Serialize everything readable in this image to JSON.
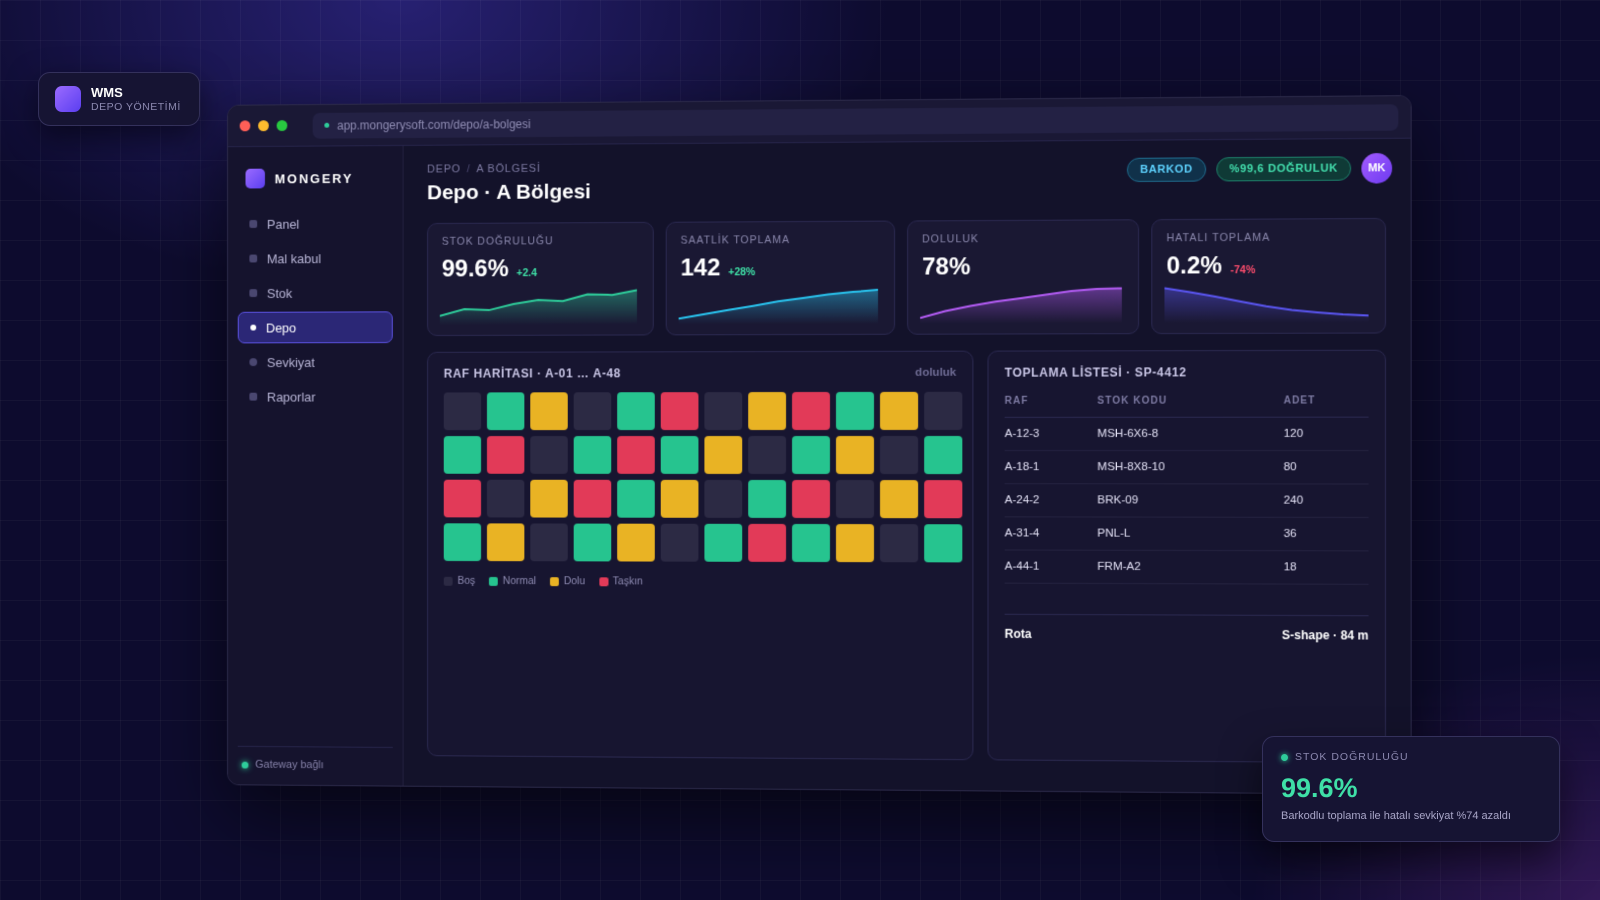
{
  "chip": {
    "title": "WMS",
    "subtitle": "DEPO YÖNETİMİ"
  },
  "browser": {
    "url": "app.mongerysoft.com/depo/a-bolgesi"
  },
  "sidebar": {
    "brand": "MONGERY",
    "items": [
      {
        "label": "Panel"
      },
      {
        "label": "Mal kabul"
      },
      {
        "label": "Stok"
      },
      {
        "label": "Depo",
        "active": true
      },
      {
        "label": "Sevkiyat"
      },
      {
        "label": "Raporlar"
      }
    ],
    "footer": "Gateway bağlı"
  },
  "header": {
    "breadcrumb": [
      "DEPO",
      "A BÖLGESİ"
    ],
    "title": "Depo · A Bölgesi",
    "badge_barkod": "BARKOD",
    "badge_accuracy": "%99,6 DOĞRULUK",
    "avatar": "MK"
  },
  "kpis": [
    {
      "label": "STOK DOĞRULUĞU",
      "value": "99.6%",
      "delta": "+2.4",
      "delta_color": "#3fe0a7",
      "line_color": "#2ecc9a",
      "trend": [
        0.15,
        0.35,
        0.32,
        0.5,
        0.62,
        0.58,
        0.78,
        0.76,
        0.9
      ]
    },
    {
      "label": "SAATLİK TOPLAMA",
      "value": "142",
      "delta": "+28%",
      "delta_color": "#3fe0a7",
      "line_color": "#29c4ef",
      "trend": [
        0.05,
        0.18,
        0.3,
        0.42,
        0.55,
        0.65,
        0.75,
        0.82,
        0.88
      ]
    },
    {
      "label": "DOLULUK",
      "value": "78%",
      "delta": "",
      "delta_color": "#3fe0a7",
      "line_color": "#b45cf5",
      "trend": [
        0.05,
        0.25,
        0.4,
        0.52,
        0.62,
        0.72,
        0.82,
        0.88,
        0.9
      ]
    },
    {
      "label": "HATALI TOPLAMA",
      "value": "0.2%",
      "delta": "-74%",
      "delta_color": "#ff4d6d",
      "line_color": "#5a55f0",
      "trend": [
        0.9,
        0.78,
        0.65,
        0.5,
        0.36,
        0.25,
        0.18,
        0.12,
        0.08
      ]
    }
  ],
  "rack_map": {
    "title": "RAF HARİTASI · A-01 … A-48",
    "aside": "doluluk",
    "status_colors": {
      "bos": "#2c2a44",
      "normal": "#26c48f",
      "dolu": "#e9b324",
      "taskin": "#e23a58"
    },
    "rows": [
      [
        "bos",
        "normal",
        "dolu",
        "bos",
        "normal",
        "taskin",
        "bos",
        "dolu",
        "taskin",
        "normal",
        "dolu",
        "bos"
      ],
      [
        "normal",
        "taskin",
        "bos",
        "normal",
        "taskin",
        "normal",
        "dolu",
        "bos",
        "normal",
        "dolu",
        "bos",
        "normal"
      ],
      [
        "taskin",
        "bos",
        "dolu",
        "taskin",
        "normal",
        "dolu",
        "bos",
        "normal",
        "taskin",
        "bos",
        "dolu",
        "taskin"
      ],
      [
        "normal",
        "dolu",
        "bos",
        "normal",
        "dolu",
        "bos",
        "normal",
        "taskin",
        "normal",
        "dolu",
        "bos",
        "normal"
      ]
    ],
    "legend": [
      {
        "key": "bos",
        "label": "Boş"
      },
      {
        "key": "normal",
        "label": "Normal"
      },
      {
        "key": "dolu",
        "label": "Dolu"
      },
      {
        "key": "taskin",
        "label": "Taşkın"
      }
    ]
  },
  "pick_list": {
    "title": "TOPLAMA LİSTESİ · SP-4412",
    "columns": [
      "RAF",
      "STOK KODU",
      "ADET"
    ],
    "rows": [
      [
        "A-12-3",
        "MSH-6X6-8",
        "120"
      ],
      [
        "A-18-1",
        "MSH-8X8-10",
        "80"
      ],
      [
        "A-24-2",
        "BRK-09",
        "240"
      ],
      [
        "A-31-4",
        "PNL-L",
        "36"
      ],
      [
        "A-44-1",
        "FRM-A2",
        "18"
      ]
    ],
    "route_label": "Rota",
    "route_value": "S-shape · 84 m"
  },
  "float_card": {
    "label": "STOK DOĞRULUĞU",
    "value": "99.6%",
    "desc": "Barkodlu toplama ile hatalı sevkiyat %74 azaldı"
  }
}
